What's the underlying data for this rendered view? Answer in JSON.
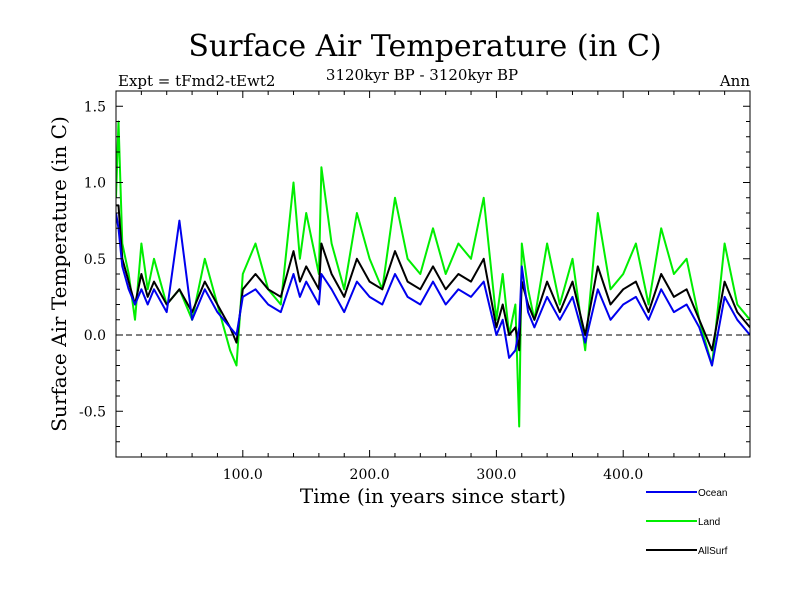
{
  "chart_data": {
    "type": "line",
    "title": "Surface Air Temperature (in C)",
    "subtitle_left": "Expt = tFmd2-tEwt2",
    "subtitle_center": "3120kyr BP - 3120kyr BP",
    "subtitle_right": "Ann",
    "xlabel": "Time (in years since start)",
    "ylabel": "Surface Air Temperature (in C)",
    "xlim": [
      0,
      500
    ],
    "ylim": [
      -0.8,
      1.6
    ],
    "xticks": [
      100,
      200,
      300,
      400
    ],
    "xtick_labels": [
      "100.0",
      "200.0",
      "300.0",
      "400.0"
    ],
    "yticks": [
      -0.5,
      0.0,
      0.5,
      1.0,
      1.5
    ],
    "ytick_labels": [
      "-0.5",
      "0.0",
      "0.5",
      "1.0",
      "1.5"
    ],
    "zero_line": 0,
    "legend_position": "bottom-right",
    "series": [
      {
        "name": "Land",
        "color": "#00ee00",
        "x": [
          0,
          2,
          5,
          10,
          15,
          20,
          25,
          30,
          40,
          50,
          60,
          70,
          80,
          90,
          95,
          100,
          110,
          120,
          130,
          140,
          145,
          150,
          160,
          162,
          170,
          180,
          190,
          200,
          210,
          220,
          230,
          240,
          250,
          260,
          270,
          280,
          290,
          300,
          305,
          310,
          315,
          318,
          320,
          325,
          330,
          340,
          350,
          360,
          370,
          380,
          390,
          400,
          410,
          420,
          430,
          440,
          450,
          460,
          470,
          480,
          490,
          500
        ],
        "values": [
          0.9,
          1.4,
          0.6,
          0.4,
          0.1,
          0.6,
          0.3,
          0.5,
          0.2,
          0.3,
          0.1,
          0.5,
          0.2,
          -0.1,
          -0.2,
          0.4,
          0.6,
          0.3,
          0.2,
          1.0,
          0.5,
          0.8,
          0.4,
          1.1,
          0.6,
          0.3,
          0.8,
          0.5,
          0.3,
          0.9,
          0.5,
          0.4,
          0.7,
          0.4,
          0.6,
          0.5,
          0.9,
          0.1,
          0.4,
          0.0,
          0.2,
          -0.6,
          0.6,
          0.3,
          0.1,
          0.6,
          0.2,
          0.5,
          -0.1,
          0.8,
          0.3,
          0.4,
          0.6,
          0.2,
          0.7,
          0.4,
          0.5,
          0.1,
          -0.2,
          0.6,
          0.2,
          0.1
        ]
      },
      {
        "name": "AllSurf",
        "color": "#000000",
        "x": [
          0,
          2,
          5,
          10,
          15,
          20,
          25,
          30,
          40,
          50,
          60,
          70,
          80,
          90,
          95,
          100,
          110,
          120,
          130,
          140,
          145,
          150,
          160,
          162,
          170,
          180,
          190,
          200,
          210,
          220,
          230,
          240,
          250,
          260,
          270,
          280,
          290,
          300,
          305,
          310,
          315,
          318,
          320,
          325,
          330,
          340,
          350,
          360,
          370,
          380,
          390,
          400,
          410,
          420,
          430,
          440,
          450,
          460,
          470,
          480,
          490,
          500
        ],
        "values": [
          0.85,
          0.85,
          0.5,
          0.35,
          0.2,
          0.4,
          0.25,
          0.35,
          0.2,
          0.3,
          0.15,
          0.35,
          0.2,
          0.05,
          -0.05,
          0.3,
          0.4,
          0.3,
          0.25,
          0.55,
          0.35,
          0.45,
          0.3,
          0.6,
          0.4,
          0.25,
          0.5,
          0.35,
          0.3,
          0.55,
          0.35,
          0.3,
          0.45,
          0.3,
          0.4,
          0.35,
          0.5,
          0.05,
          0.2,
          0.0,
          0.05,
          -0.1,
          0.35,
          0.2,
          0.1,
          0.35,
          0.15,
          0.35,
          0.0,
          0.45,
          0.2,
          0.3,
          0.35,
          0.15,
          0.4,
          0.25,
          0.3,
          0.1,
          -0.1,
          0.35,
          0.15,
          0.05
        ]
      },
      {
        "name": "Ocean",
        "color": "#0000ee",
        "x": [
          0,
          2,
          5,
          10,
          15,
          20,
          25,
          30,
          40,
          50,
          60,
          70,
          80,
          90,
          95,
          100,
          110,
          120,
          130,
          140,
          145,
          150,
          160,
          162,
          170,
          180,
          190,
          200,
          210,
          220,
          230,
          240,
          250,
          260,
          270,
          280,
          290,
          300,
          305,
          310,
          315,
          318,
          320,
          325,
          330,
          340,
          350,
          360,
          370,
          380,
          390,
          400,
          410,
          420,
          430,
          440,
          450,
          460,
          470,
          480,
          490,
          500
        ],
        "values": [
          0.8,
          0.7,
          0.45,
          0.3,
          0.2,
          0.3,
          0.2,
          0.3,
          0.15,
          0.75,
          0.1,
          0.3,
          0.15,
          0.05,
          0.0,
          0.25,
          0.3,
          0.2,
          0.15,
          0.4,
          0.25,
          0.35,
          0.2,
          0.4,
          0.3,
          0.15,
          0.35,
          0.25,
          0.2,
          0.4,
          0.25,
          0.2,
          0.35,
          0.2,
          0.3,
          0.25,
          0.35,
          0.0,
          0.1,
          -0.15,
          -0.1,
          0.05,
          0.45,
          0.15,
          0.05,
          0.25,
          0.1,
          0.25,
          -0.05,
          0.3,
          0.1,
          0.2,
          0.25,
          0.1,
          0.3,
          0.15,
          0.2,
          0.05,
          -0.2,
          0.25,
          0.1,
          0.0
        ]
      }
    ],
    "legend_order": [
      "Ocean",
      "Land",
      "AllSurf"
    ]
  }
}
